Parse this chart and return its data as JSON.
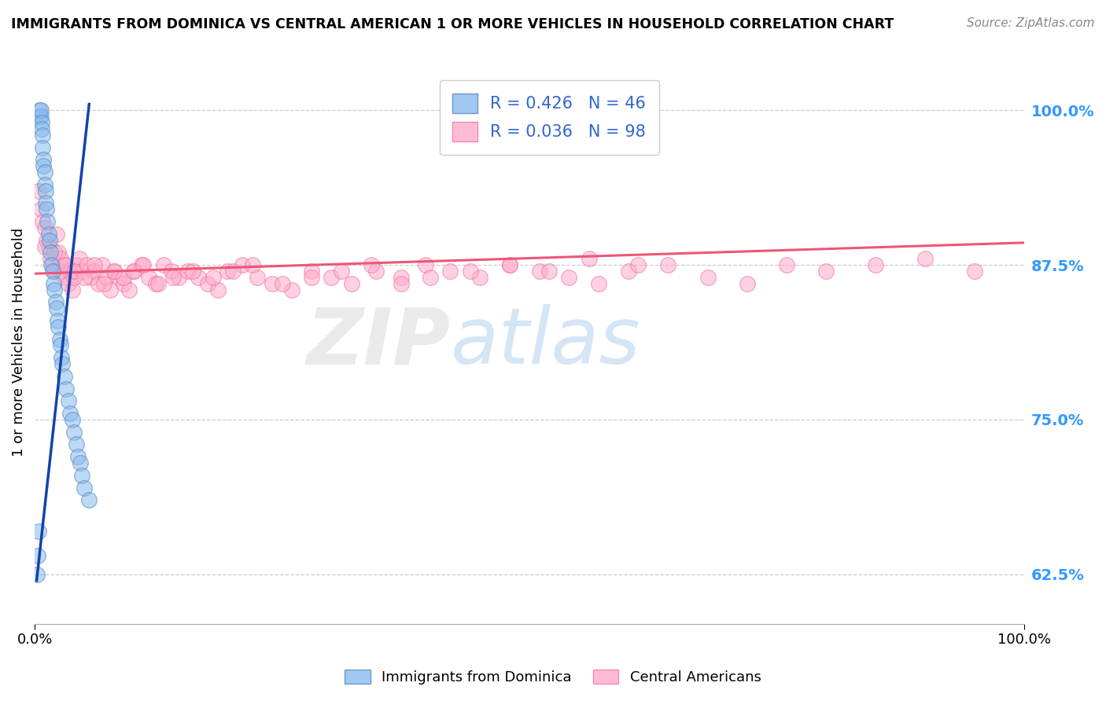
{
  "title": "IMMIGRANTS FROM DOMINICA VS CENTRAL AMERICAN 1 OR MORE VEHICLES IN HOUSEHOLD CORRELATION CHART",
  "source": "Source: ZipAtlas.com",
  "ylabel": "1 or more Vehicles in Household",
  "watermark_zip": "ZIP",
  "watermark_atlas": "atlas",
  "xlim": [
    0.0,
    1.0
  ],
  "ylim": [
    0.585,
    1.04
  ],
  "yticks": [
    0.625,
    0.75,
    0.875,
    1.0
  ],
  "ytick_labels": [
    "62.5%",
    "75.0%",
    "87.5%",
    "100.0%"
  ],
  "legend_blue_label": "Immigrants from Dominica",
  "legend_pink_label": "Central Americans",
  "R_blue": 0.426,
  "N_blue": 46,
  "R_pink": 0.036,
  "N_pink": 98,
  "blue_color": "#88BBEE",
  "pink_color": "#FFAACC",
  "blue_edge_color": "#5588BB",
  "pink_edge_color": "#EE7799",
  "blue_line_color": "#1144AA",
  "pink_line_color": "#EE5577",
  "grid_color": "#CCCCCC",
  "background_color": "#FFFFFF",
  "blue_scatter_x": [
    0.002,
    0.003,
    0.004,
    0.005,
    0.005,
    0.006,
    0.006,
    0.007,
    0.007,
    0.008,
    0.008,
    0.009,
    0.009,
    0.01,
    0.01,
    0.011,
    0.011,
    0.012,
    0.013,
    0.014,
    0.015,
    0.016,
    0.017,
    0.018,
    0.019,
    0.02,
    0.021,
    0.022,
    0.023,
    0.024,
    0.025,
    0.026,
    0.027,
    0.028,
    0.03,
    0.032,
    0.034,
    0.036,
    0.038,
    0.04,
    0.042,
    0.044,
    0.046,
    0.048,
    0.05,
    0.055
  ],
  "blue_scatter_y": [
    0.625,
    0.64,
    0.66,
    0.995,
    1.0,
    0.995,
    1.0,
    0.99,
    0.985,
    0.98,
    0.97,
    0.96,
    0.955,
    0.95,
    0.94,
    0.935,
    0.925,
    0.92,
    0.91,
    0.9,
    0.895,
    0.885,
    0.875,
    0.87,
    0.86,
    0.855,
    0.845,
    0.84,
    0.83,
    0.825,
    0.815,
    0.81,
    0.8,
    0.795,
    0.785,
    0.775,
    0.765,
    0.755,
    0.75,
    0.74,
    0.73,
    0.72,
    0.715,
    0.705,
    0.695,
    0.685
  ],
  "pink_scatter_x": [
    0.004,
    0.006,
    0.008,
    0.01,
    0.012,
    0.014,
    0.016,
    0.018,
    0.02,
    0.022,
    0.024,
    0.026,
    0.028,
    0.03,
    0.032,
    0.034,
    0.036,
    0.038,
    0.04,
    0.042,
    0.045,
    0.048,
    0.052,
    0.056,
    0.06,
    0.064,
    0.068,
    0.072,
    0.076,
    0.08,
    0.085,
    0.09,
    0.095,
    0.1,
    0.108,
    0.115,
    0.122,
    0.13,
    0.138,
    0.145,
    0.155,
    0.165,
    0.175,
    0.185,
    0.195,
    0.21,
    0.225,
    0.24,
    0.26,
    0.28,
    0.3,
    0.32,
    0.345,
    0.37,
    0.395,
    0.42,
    0.45,
    0.48,
    0.51,
    0.54,
    0.57,
    0.6,
    0.64,
    0.68,
    0.72,
    0.76,
    0.8,
    0.85,
    0.9,
    0.95,
    0.01,
    0.02,
    0.03,
    0.04,
    0.05,
    0.06,
    0.07,
    0.08,
    0.09,
    0.1,
    0.11,
    0.125,
    0.14,
    0.16,
    0.18,
    0.2,
    0.22,
    0.25,
    0.28,
    0.31,
    0.34,
    0.37,
    0.4,
    0.44,
    0.48,
    0.52,
    0.56,
    0.61
  ],
  "pink_scatter_y": [
    0.935,
    0.92,
    0.91,
    0.905,
    0.895,
    0.89,
    0.88,
    0.875,
    0.87,
    0.9,
    0.885,
    0.88,
    0.87,
    0.865,
    0.875,
    0.86,
    0.87,
    0.855,
    0.865,
    0.875,
    0.88,
    0.87,
    0.875,
    0.865,
    0.87,
    0.86,
    0.875,
    0.865,
    0.855,
    0.87,
    0.865,
    0.86,
    0.855,
    0.87,
    0.875,
    0.865,
    0.86,
    0.875,
    0.87,
    0.865,
    0.87,
    0.865,
    0.86,
    0.855,
    0.87,
    0.875,
    0.865,
    0.86,
    0.855,
    0.87,
    0.865,
    0.86,
    0.87,
    0.865,
    0.875,
    0.87,
    0.865,
    0.875,
    0.87,
    0.865,
    0.86,
    0.87,
    0.875,
    0.865,
    0.86,
    0.875,
    0.87,
    0.875,
    0.88,
    0.87,
    0.89,
    0.885,
    0.875,
    0.87,
    0.865,
    0.875,
    0.86,
    0.87,
    0.865,
    0.87,
    0.875,
    0.86,
    0.865,
    0.87,
    0.865,
    0.87,
    0.875,
    0.86,
    0.865,
    0.87,
    0.875,
    0.86,
    0.865,
    0.87,
    0.875,
    0.87,
    0.88,
    0.875
  ],
  "pink_line_x0": 0.0,
  "pink_line_x1": 1.0,
  "pink_line_y0": 0.868,
  "pink_line_y1": 0.893,
  "blue_line_x0": 0.002,
  "blue_line_x1": 0.055,
  "blue_line_y0": 0.62,
  "blue_line_y1": 1.005
}
